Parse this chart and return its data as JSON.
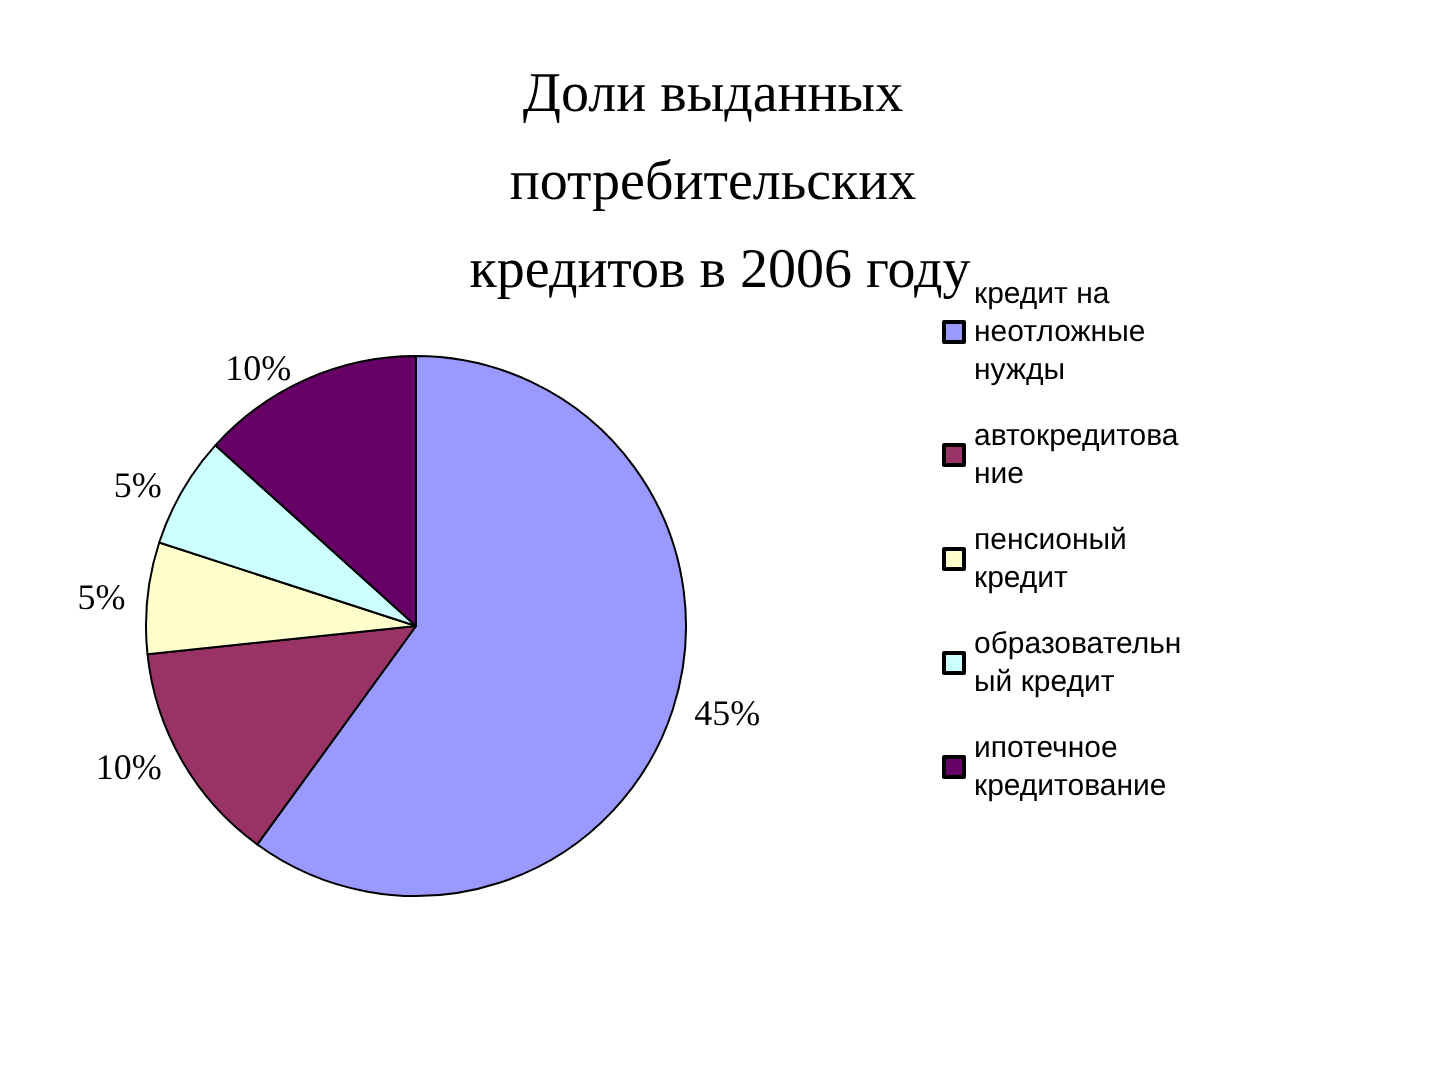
{
  "chart_data": {
    "type": "pie",
    "title": "Доли выданных потребительских кредитов в 2006 году",
    "categories": [
      "кредит на неотложные нужды",
      "автокредитование",
      "пенсионый кредит",
      "образовательный кредит",
      "ипотечное кредитование"
    ],
    "values": [
      45,
      10,
      5,
      5,
      10
    ],
    "value_labels": [
      "45%",
      "10%",
      "5%",
      "5%",
      "10%"
    ],
    "colors": [
      "#9999ff",
      "#993366",
      "#ffffcc",
      "#ccffff",
      "#660066"
    ],
    "legend": "right"
  }
}
